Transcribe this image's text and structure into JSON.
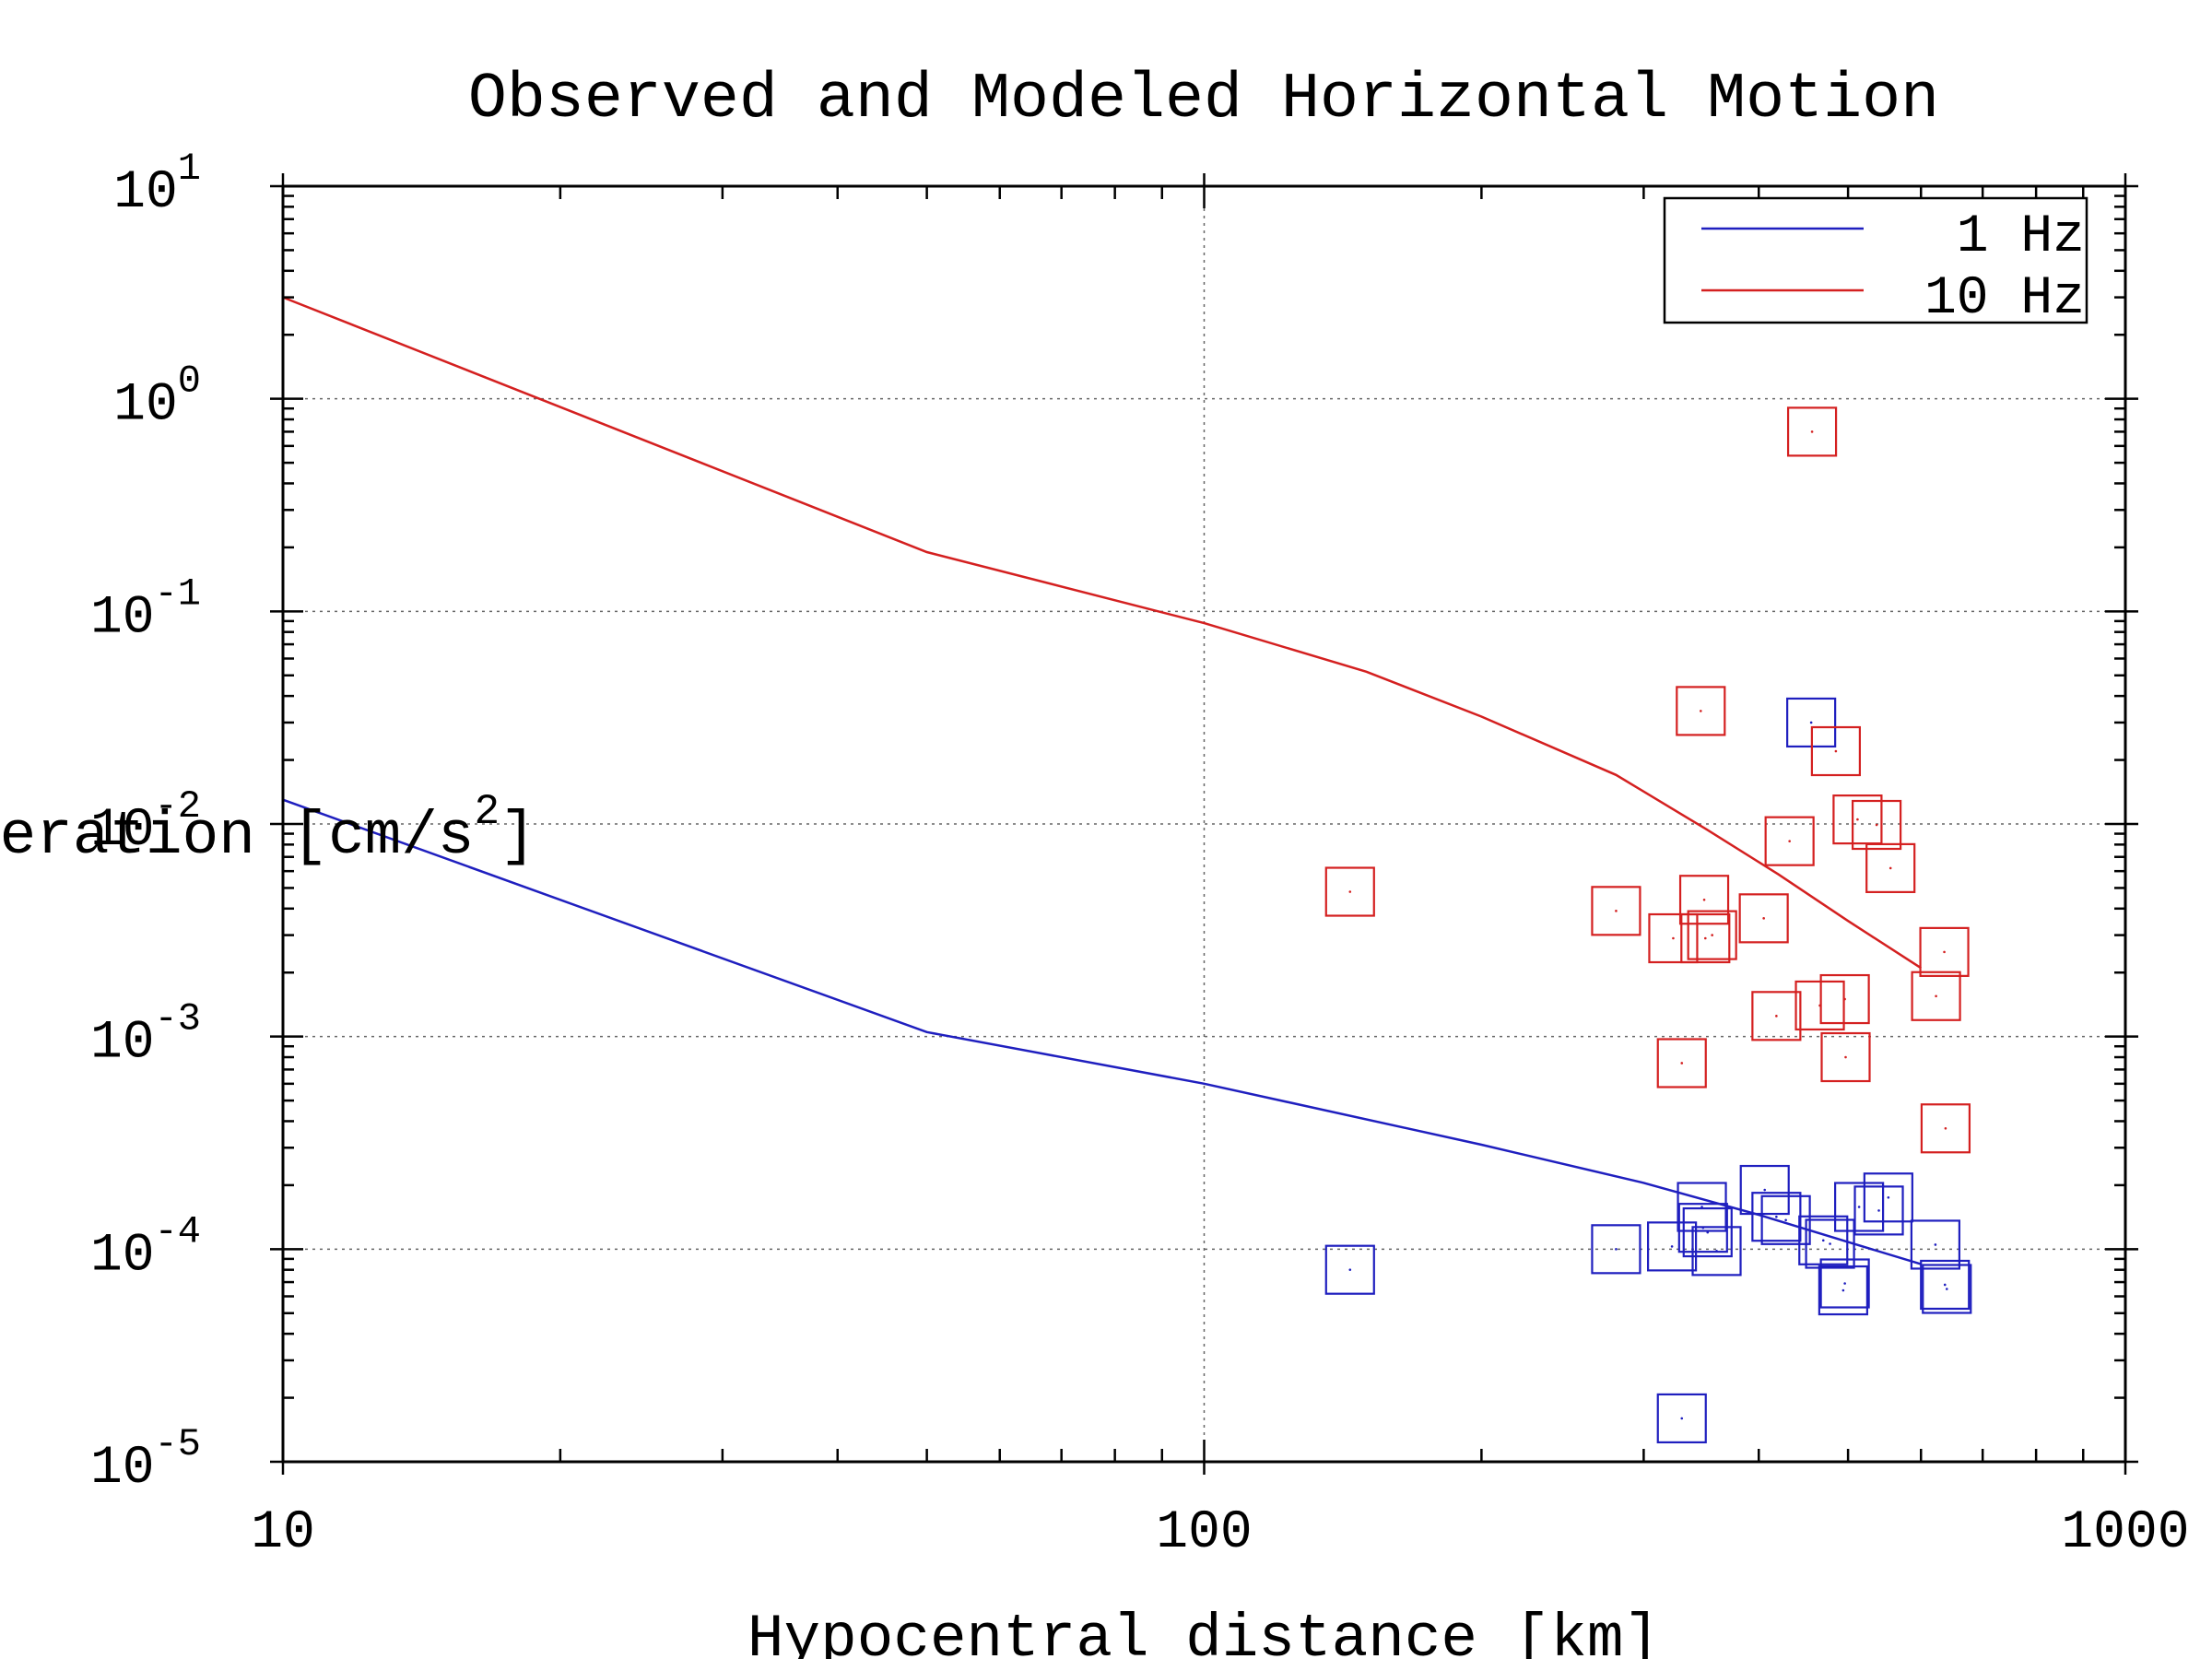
{
  "chart_data": {
    "type": "scatter",
    "title": "Observed and Modeled Horizontal Motion",
    "xlabel": "Hypocentral distance [km]",
    "ylabel_visible": "leration [cm/s",
    "ylabel_superscript": "2",
    "ylabel_suffix": "]",
    "xscale": "log",
    "yscale": "log",
    "xlim": [
      10,
      1000
    ],
    "ylim": [
      1e-05,
      10
    ],
    "x_ticks": [
      {
        "value": 10,
        "label": "10"
      },
      {
        "value": 100,
        "label": "100"
      },
      {
        "value": 1000,
        "label": "1000"
      }
    ],
    "y_ticks": [
      {
        "value": 10,
        "base": "10",
        "exp": "1"
      },
      {
        "value": 1,
        "base": "10",
        "exp": "0"
      },
      {
        "value": 0.1,
        "base": "10",
        "exp": "-1"
      },
      {
        "value": 0.01,
        "base": "10",
        "exp": "-2"
      },
      {
        "value": 0.001,
        "base": "10",
        "exp": "-3"
      },
      {
        "value": 0.0001,
        "base": "10",
        "exp": "-4"
      },
      {
        "value": 1e-05,
        "base": "10",
        "exp": "-5"
      }
    ],
    "grid": true,
    "legend_position": "top-right",
    "series": [
      {
        "name": "1 Hz",
        "color": "#1f1fbf",
        "line": {
          "x": [
            10,
            50,
            100,
            200,
            300,
            400,
            500,
            600
          ],
          "y": [
            0.013,
            0.00105,
            0.0006,
            0.00031,
            0.000205,
            0.000145,
            0.000108,
            8.5e-05
          ]
        },
        "points": [
          {
            "x": 144,
            "y": 8e-05
          },
          {
            "x": 280,
            "y": 0.0001
          },
          {
            "x": 322,
            "y": 0.000103
          },
          {
            "x": 330,
            "y": 1.6e-05
          },
          {
            "x": 347,
            "y": 0.000158
          },
          {
            "x": 348,
            "y": 0.000126
          },
          {
            "x": 352,
            "y": 0.00012
          },
          {
            "x": 360,
            "y": 9.8e-05
          },
          {
            "x": 406,
            "y": 0.00019
          },
          {
            "x": 418,
            "y": 0.000142
          },
          {
            "x": 428,
            "y": 0.000137
          },
          {
            "x": 456,
            "y": 0.03
          },
          {
            "x": 470,
            "y": 0.00011
          },
          {
            "x": 478,
            "y": 0.000106
          },
          {
            "x": 494,
            "y": 6.4e-05
          },
          {
            "x": 496,
            "y": 6.9e-05
          },
          {
            "x": 514,
            "y": 0.000158
          },
          {
            "x": 540,
            "y": 0.000152
          },
          {
            "x": 553,
            "y": 0.000175
          },
          {
            "x": 622,
            "y": 0.000105
          },
          {
            "x": 637,
            "y": 6.8e-05
          },
          {
            "x": 640,
            "y": 6.5e-05
          }
        ]
      },
      {
        "name": "10 Hz",
        "color": "#d42020",
        "line": {
          "x": [
            10,
            50,
            100,
            150,
            200,
            280,
            350,
            420,
            500,
            600
          ],
          "y": [
            3.0,
            0.19,
            0.088,
            0.052,
            0.032,
            0.017,
            0.0095,
            0.0058,
            0.0035,
            0.0021
          ]
        },
        "points": [
          {
            "x": 144,
            "y": 0.0048
          },
          {
            "x": 280,
            "y": 0.0039
          },
          {
            "x": 323,
            "y": 0.0029
          },
          {
            "x": 330,
            "y": 0.00075
          },
          {
            "x": 346,
            "y": 0.034
          },
          {
            "x": 349,
            "y": 0.0044
          },
          {
            "x": 350,
            "y": 0.0029
          },
          {
            "x": 356,
            "y": 0.003
          },
          {
            "x": 405,
            "y": 0.0036
          },
          {
            "x": 418,
            "y": 0.00125
          },
          {
            "x": 432,
            "y": 0.0083
          },
          {
            "x": 457,
            "y": 0.7
          },
          {
            "x": 466,
            "y": 0.0014
          },
          {
            "x": 485,
            "y": 0.022
          },
          {
            "x": 496,
            "y": 0.0015
          },
          {
            "x": 497,
            "y": 0.0008
          },
          {
            "x": 512,
            "y": 0.0105
          },
          {
            "x": 537,
            "y": 0.0099
          },
          {
            "x": 556,
            "y": 0.0062
          },
          {
            "x": 623,
            "y": 0.00155
          },
          {
            "x": 636,
            "y": 0.0025
          },
          {
            "x": 638,
            "y": 0.00037
          }
        ]
      }
    ]
  }
}
